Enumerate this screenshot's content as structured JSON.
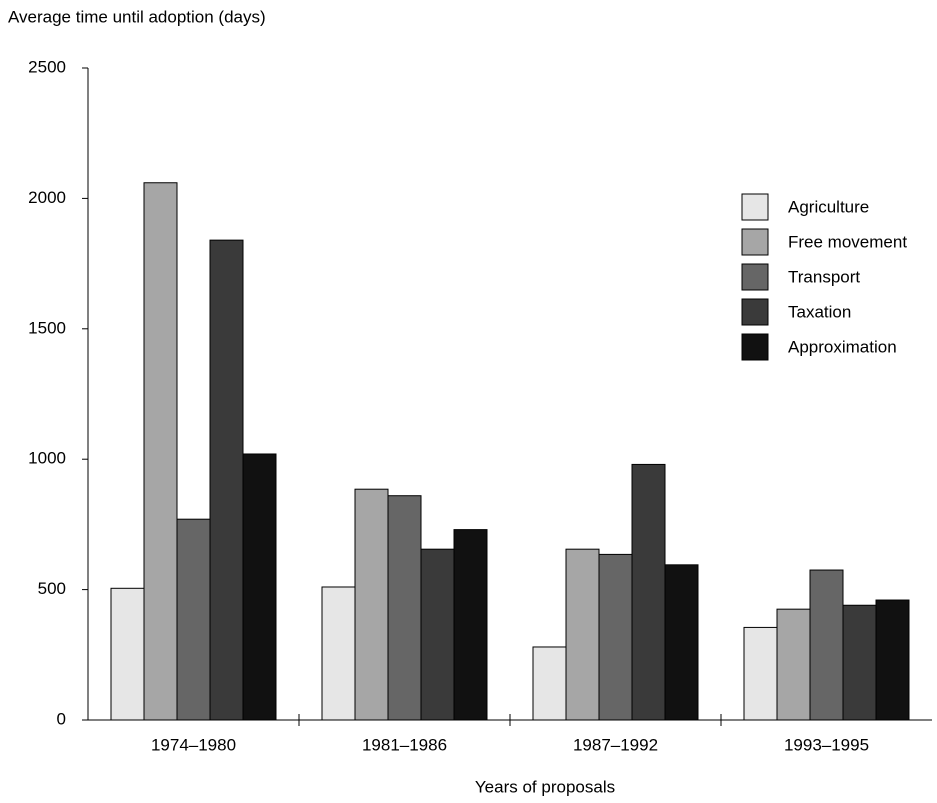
{
  "chart_data": {
    "type": "bar",
    "y_label": "Average time until adoption (days)",
    "x_label": "Years of proposals",
    "categories": [
      "1974–1980",
      "1981–1986",
      "1987–1992",
      "1993–1995"
    ],
    "series": [
      {
        "name": "Agriculture",
        "color": "#e6e6e6",
        "values": [
          505,
          510,
          280,
          355
        ]
      },
      {
        "name": "Free movement",
        "color": "#a6a6a6",
        "values": [
          2060,
          885,
          655,
          425
        ]
      },
      {
        "name": "Transport",
        "color": "#666666",
        "values": [
          770,
          860,
          635,
          575
        ]
      },
      {
        "name": "Taxation",
        "color": "#3a3a3a",
        "values": [
          1840,
          655,
          980,
          440
        ]
      },
      {
        "name": "Approximation",
        "color": "#111111",
        "values": [
          1020,
          730,
          595,
          460
        ]
      }
    ],
    "ylim": [
      0,
      2500
    ],
    "yticks": [
      0,
      500,
      1000,
      1500,
      2000,
      2500
    ],
    "legend": "right"
  }
}
